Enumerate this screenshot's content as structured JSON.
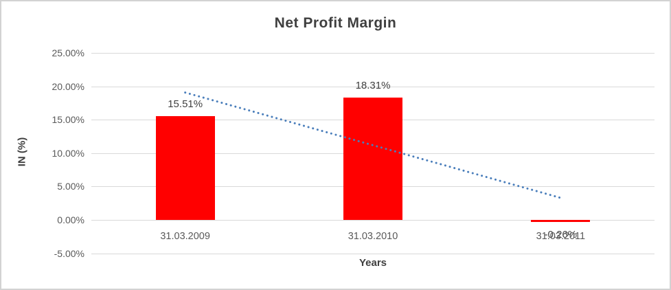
{
  "chart_data": {
    "type": "bar",
    "title": "Net Profit Margin",
    "xlabel": "Years",
    "ylabel": "IN (%)",
    "categories": [
      "31.03.2009",
      "31.03.2010",
      "31.03.2011"
    ],
    "values": [
      15.51,
      18.31,
      -0.26
    ],
    "data_labels": [
      "15.51%",
      "18.31%",
      "-0.26%"
    ],
    "ylim": [
      -5,
      25
    ],
    "ytick_step": 5,
    "ytick_labels": [
      "25.00%",
      "20.00%",
      "15.00%",
      "10.00%",
      "5.00%",
      "0.00%",
      "-5.00%"
    ],
    "grid": true,
    "legend_position": "none",
    "bar_color": "#ff0000",
    "gridline_color": "#d9d9d9",
    "title_color": "#3f3f3f",
    "tick_label_color": "#595959",
    "trendline": {
      "kind": "linear",
      "style": "dotted",
      "color": "#4a7ebb",
      "start_value": 19.07,
      "end_value": 3.3
    }
  }
}
